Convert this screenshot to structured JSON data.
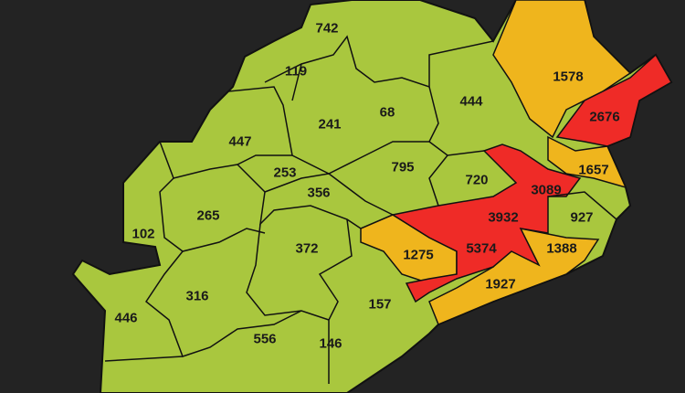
{
  "colors": {
    "background": "#232323",
    "low": "#a9c73e",
    "medium": "#efb51d",
    "high": "#ef2b27",
    "border": "#111111"
  },
  "districts": [
    {
      "value": "742",
      "level": "low"
    },
    {
      "value": "119",
      "level": "low"
    },
    {
      "value": "241",
      "level": "low"
    },
    {
      "value": "68",
      "level": "low"
    },
    {
      "value": "444",
      "level": "low"
    },
    {
      "value": "1578",
      "level": "medium"
    },
    {
      "value": "2676",
      "level": "high"
    },
    {
      "value": "447",
      "level": "low"
    },
    {
      "value": "253",
      "level": "low"
    },
    {
      "value": "795",
      "level": "low"
    },
    {
      "value": "720",
      "level": "low"
    },
    {
      "value": "1657",
      "level": "medium"
    },
    {
      "value": "3089",
      "level": "high"
    },
    {
      "value": "356",
      "level": "low"
    },
    {
      "value": "265",
      "level": "low"
    },
    {
      "value": "3932",
      "level": "high"
    },
    {
      "value": "927",
      "level": "low"
    },
    {
      "value": "102",
      "level": "low"
    },
    {
      "value": "372",
      "level": "low"
    },
    {
      "value": "1275",
      "level": "medium"
    },
    {
      "value": "5374",
      "level": "high"
    },
    {
      "value": "1388",
      "level": "medium"
    },
    {
      "value": "1927",
      "level": "medium"
    },
    {
      "value": "316",
      "level": "low"
    },
    {
      "value": "157",
      "level": "low"
    },
    {
      "value": "446",
      "level": "low"
    },
    {
      "value": "556",
      "level": "low"
    },
    {
      "value": "146",
      "level": "low"
    }
  ]
}
